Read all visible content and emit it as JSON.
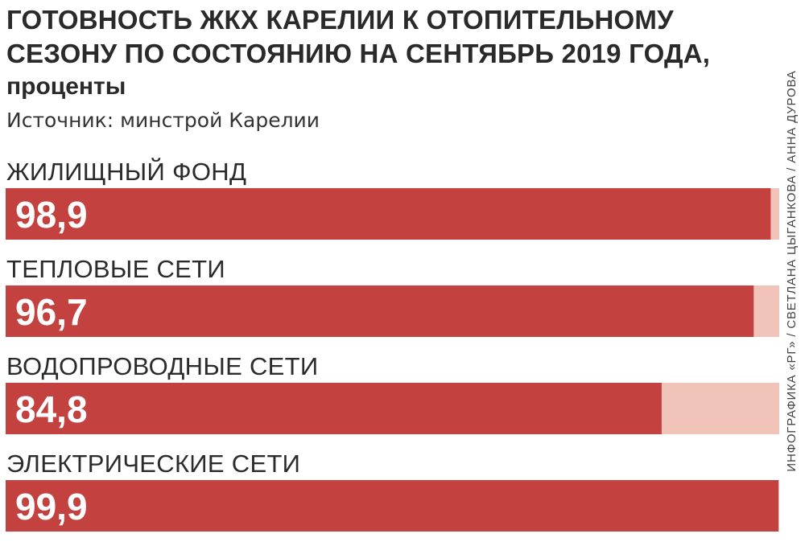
{
  "title": "ГОТОВНОСТЬ ЖКХ КАРЕЛИИ К ОТОПИТЕЛЬНОМУ СЕЗОНУ ПО СОСТОЯНИЮ НА СЕНТЯБРЬ 2019 ГОДА,",
  "unit": "проценты",
  "source": "Источник: минстрой Карелии",
  "credit": "ИНФОГРАФИКА «РГ» / СВЕТЛАНА ЦЫГАНКОВА / АННА ДУРОВА",
  "colors": {
    "bar": "#c3413e",
    "track": "#f2c4b9"
  },
  "chart_data": {
    "type": "bar",
    "orientation": "horizontal",
    "categories": [
      "ЖИЛИЩНЫЙ ФОНД",
      "ТЕПЛОВЫЕ СЕТИ",
      "ВОДОПРОВОДНЫЕ СЕТИ",
      "ЭЛЕКТРИЧЕСКИЕ СЕТИ"
    ],
    "values": [
      98.9,
      96.7,
      84.8,
      99.9
    ],
    "value_labels": [
      "98,9",
      "96,7",
      "84,8",
      "99,9"
    ],
    "xlim": [
      0,
      100
    ],
    "grid": false,
    "legend": "none"
  }
}
